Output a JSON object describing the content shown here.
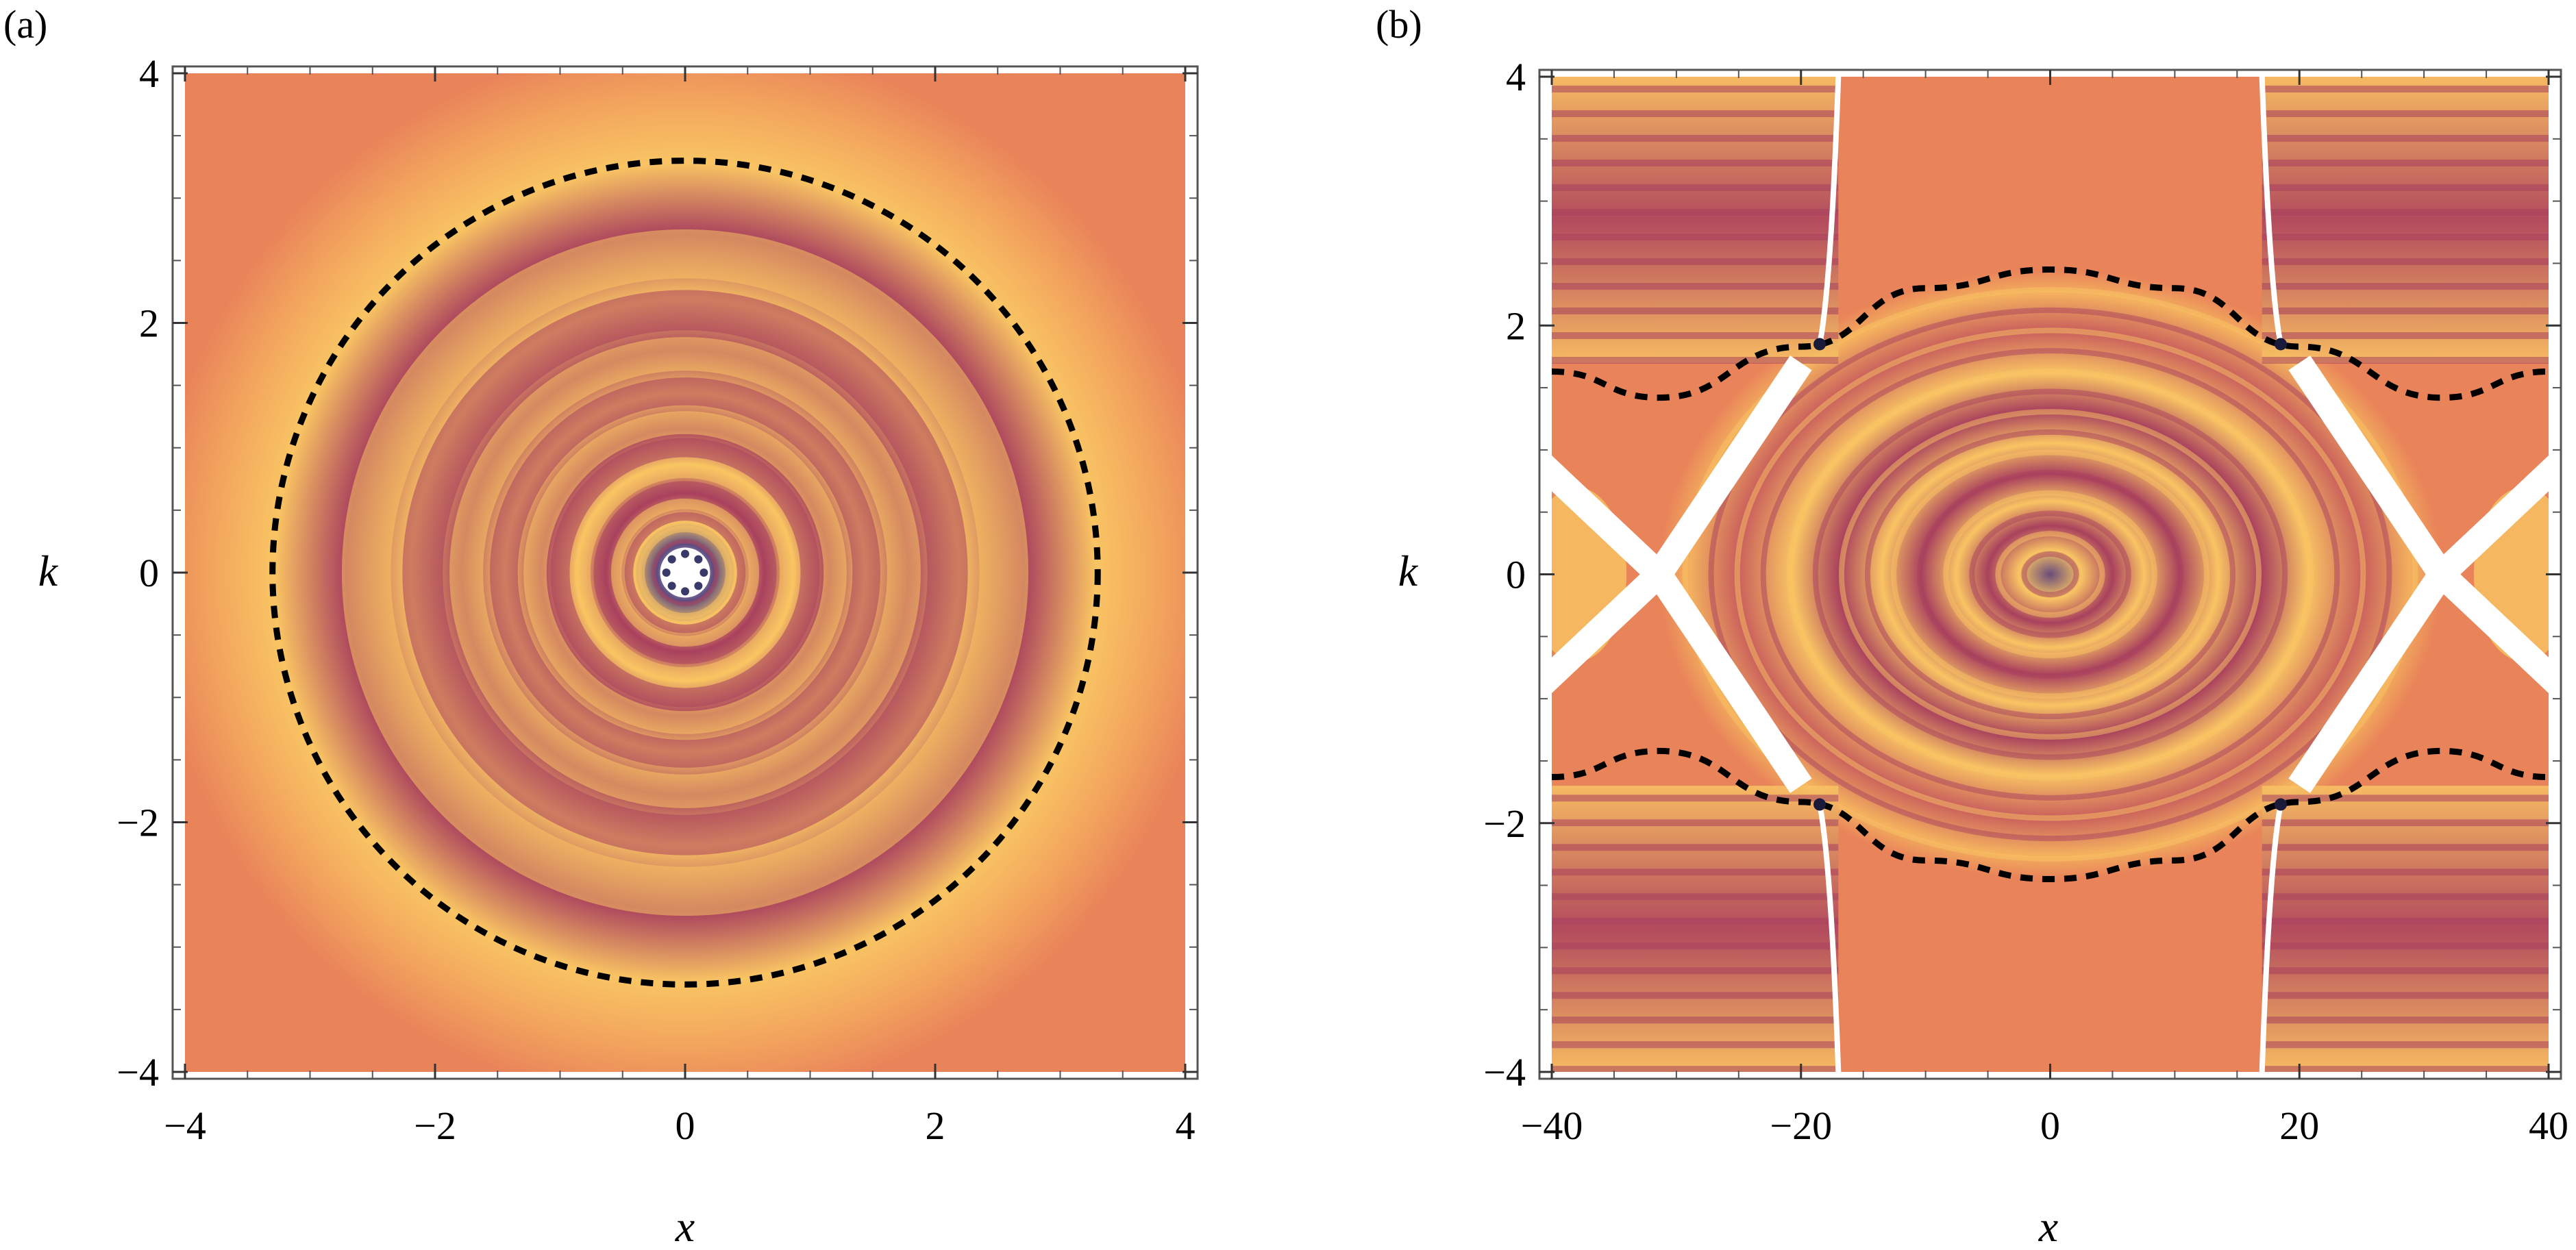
{
  "figure": {
    "panels": [
      {
        "label": "(a)",
        "xlabel": "x",
        "ylabel": "k"
      },
      {
        "label": "(b)",
        "xlabel": "x",
        "ylabel": "k"
      }
    ]
  },
  "chart_data": [
    {
      "type": "heatmap",
      "title": "",
      "panel_label": "(a)",
      "xlabel": "x",
      "ylabel": "k",
      "xlim": [
        -4,
        4
      ],
      "ylim": [
        -4,
        4
      ],
      "xticks": [
        -4,
        -2,
        0,
        2,
        4
      ],
      "yticks": [
        -4,
        -2,
        0,
        2,
        4
      ],
      "xtick_labels": [
        "−4",
        "−2",
        "0",
        "2",
        "4"
      ],
      "ytick_labels": [
        "−4",
        "−2",
        "0",
        "2",
        "4"
      ],
      "colormap": [
        "#e9835a",
        "#f9c463",
        "#a9415e",
        "#4b3f73",
        "#ffffff"
      ],
      "pattern": "concentric fringes centered at origin, fringe spacing decreasing toward center",
      "dashed_curve": {
        "shape": "circle",
        "center": [
          0,
          0
        ],
        "radius": 3.3
      }
    },
    {
      "type": "heatmap",
      "title": "",
      "panel_label": "(b)",
      "xlabel": "x",
      "ylabel": "k",
      "xlim": [
        -40,
        40
      ],
      "ylim": [
        -4,
        4
      ],
      "xticks": [
        -40,
        -20,
        0,
        20,
        40
      ],
      "yticks": [
        -4,
        -2,
        0,
        2,
        4
      ],
      "xtick_labels": [
        "−40",
        "−20",
        "0",
        "20",
        "40"
      ],
      "ytick_labels": [
        "−4",
        "−2",
        "0",
        "2",
        "4"
      ],
      "colormap": [
        "#e9835a",
        "#f9c463",
        "#a9415e",
        "#4b3f73",
        "#ffffff"
      ],
      "pattern": "elliptical fringes centered at origin; separatrix crossings at x = ±31.4, k = 0",
      "dashed_curves": [
        {
          "branch": "upper",
          "x": [
            -40,
            -31.4,
            -20,
            -10,
            0,
            10,
            20,
            31.4,
            40
          ],
          "k": [
            1.63,
            1.42,
            1.83,
            2.3,
            2.45,
            2.3,
            1.83,
            1.42,
            1.63
          ]
        },
        {
          "branch": "lower",
          "x": [
            -40,
            -31.4,
            -20,
            -10,
            0,
            10,
            20,
            31.4,
            40
          ],
          "k": [
            -1.63,
            -1.42,
            -1.83,
            -2.3,
            -2.45,
            -2.3,
            -1.83,
            -1.42,
            -1.63
          ]
        }
      ]
    }
  ]
}
